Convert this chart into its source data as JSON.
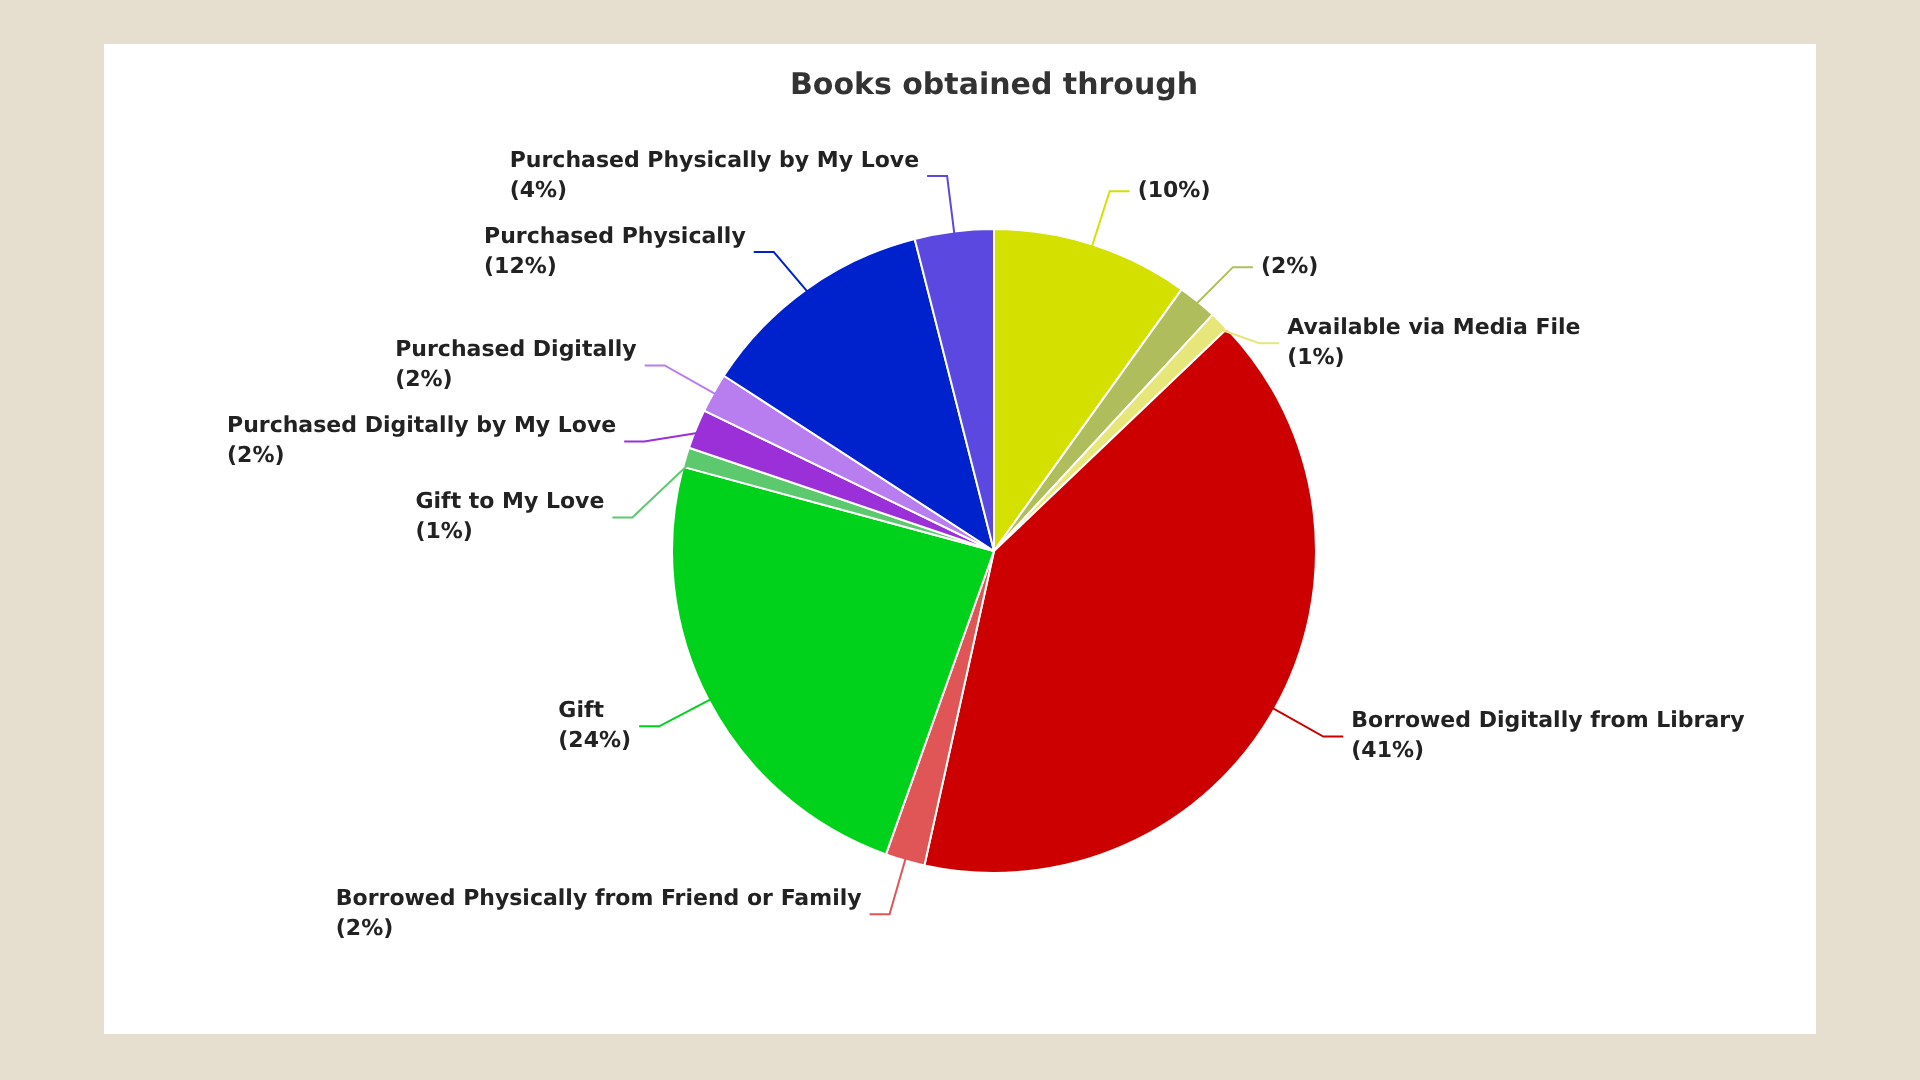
{
  "chart_data": {
    "type": "pie",
    "title": "Books obtained through",
    "categories": [
      null,
      null,
      "Available via Media File",
      "Borrowed Digitally from Library",
      "Borrowed Physically from Friend or Family",
      "Gift",
      "Gift to My Love",
      "Purchased Digitally by My Love",
      "Purchased Digitally",
      "Purchased Physically",
      "Purchased Physically by My Love"
    ],
    "values": [
      10,
      2,
      1,
      41,
      2,
      24,
      1,
      2,
      2,
      12,
      4
    ],
    "value_labels": [
      "(10%)",
      "(2%)",
      "(1%)",
      "(41%)",
      "(2%)",
      "(24%)",
      "(1%)",
      "(2%)",
      "(2%)",
      "(12%)",
      "(4%)"
    ],
    "colors": [
      "#d4e000",
      "#b0bd5c",
      "#e6e67a",
      "#cc0000",
      "#e05555",
      "#00d11a",
      "#5cc96e",
      "#9b30d9",
      "#b87ef0",
      "#0022cc",
      "#5a48e0"
    ],
    "legend": false
  }
}
